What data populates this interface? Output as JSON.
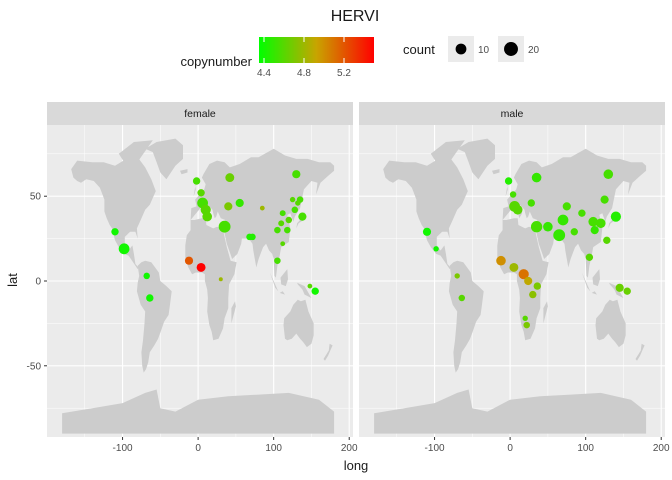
{
  "chart_data": {
    "type": "scatter",
    "title": "HERVI",
    "xlabel": "long",
    "ylabel": "lat",
    "xlim": [
      -200,
      205
    ],
    "ylim": [
      -92,
      92
    ],
    "x_ticks": [
      -100,
      0,
      100,
      200
    ],
    "y_ticks": [
      -50,
      0,
      50
    ],
    "x_tick_labels": [
      "-100",
      "0",
      "100",
      "200"
    ],
    "y_tick_labels": [
      "-50",
      "0",
      "50"
    ],
    "background": "world map (land masses in grey)",
    "facets": [
      "female",
      "male"
    ],
    "color_legend": {
      "title": "copynumber",
      "low": 4.35,
      "high": 5.5,
      "ticks": [
        4.4,
        4.8,
        5.2
      ],
      "tick_labels": [
        "4.4",
        "4.8",
        "5.2"
      ],
      "low_color": "#00ff00",
      "mid_color": "#c8a400",
      "high_color": "#ff0000"
    },
    "size_legend": {
      "title": "count",
      "values": [
        10,
        20
      ],
      "labels": [
        "10",
        "20"
      ]
    },
    "series": [
      {
        "name": "female",
        "points": [
          {
            "long": 130,
            "lat": 63,
            "copynumber": 4.55,
            "count": 10
          },
          {
            "long": -2,
            "lat": 59,
            "copynumber": 4.55,
            "count": 8
          },
          {
            "long": 42,
            "lat": 61,
            "copynumber": 4.65,
            "count": 12
          },
          {
            "long": 4,
            "lat": 52,
            "copynumber": 4.6,
            "count": 8
          },
          {
            "long": 6,
            "lat": 46,
            "copynumber": 4.55,
            "count": 18
          },
          {
            "long": 10,
            "lat": 42,
            "copynumber": 4.6,
            "count": 16
          },
          {
            "long": 12,
            "lat": 38,
            "copynumber": 4.6,
            "count": 14
          },
          {
            "long": 40,
            "lat": 44,
            "copynumber": 4.7,
            "count": 10
          },
          {
            "long": 55,
            "lat": 46,
            "copynumber": 4.5,
            "count": 10
          },
          {
            "long": 35,
            "lat": 32,
            "copynumber": 4.55,
            "count": 22
          },
          {
            "long": 68,
            "lat": 26,
            "copynumber": 4.45,
            "count": 6
          },
          {
            "long": 72,
            "lat": 26,
            "copynumber": 4.45,
            "count": 6
          },
          {
            "long": 85,
            "lat": 43,
            "copynumber": 4.8,
            "count": 3
          },
          {
            "long": 105,
            "lat": 30,
            "copynumber": 4.55,
            "count": 6
          },
          {
            "long": 112,
            "lat": 22,
            "copynumber": 4.6,
            "count": 3
          },
          {
            "long": 110,
            "lat": 34,
            "copynumber": 4.6,
            "count": 5
          },
          {
            "long": 112,
            "lat": 40,
            "copynumber": 4.55,
            "count": 5
          },
          {
            "long": 118,
            "lat": 30,
            "copynumber": 4.55,
            "count": 6
          },
          {
            "long": 120,
            "lat": 36,
            "copynumber": 4.6,
            "count": 6
          },
          {
            "long": 125,
            "lat": 48,
            "copynumber": 4.6,
            "count": 4
          },
          {
            "long": 128,
            "lat": 42,
            "copynumber": 4.55,
            "count": 6
          },
          {
            "long": 132,
            "lat": 46,
            "copynumber": 4.6,
            "count": 4
          },
          {
            "long": 135,
            "lat": 48,
            "copynumber": 4.55,
            "count": 6
          },
          {
            "long": 138,
            "lat": 38,
            "copynumber": 4.55,
            "count": 10
          },
          {
            "long": 105,
            "lat": 12,
            "copynumber": 4.55,
            "count": 6
          },
          {
            "long": -110,
            "lat": 29,
            "copynumber": 4.4,
            "count": 8
          },
          {
            "long": -98,
            "lat": 19,
            "copynumber": 4.4,
            "count": 18
          },
          {
            "long": -68,
            "lat": 3,
            "copynumber": 4.4,
            "count": 6
          },
          {
            "long": -64,
            "lat": -10,
            "copynumber": 4.4,
            "count": 8
          },
          {
            "long": -12,
            "lat": 12,
            "copynumber": 5.2,
            "count": 10
          },
          {
            "long": 4,
            "lat": 8,
            "copynumber": 5.5,
            "count": 12
          },
          {
            "long": 30,
            "lat": 1,
            "copynumber": 4.8,
            "count": 2
          },
          {
            "long": 148,
            "lat": -3,
            "copynumber": 4.6,
            "count": 3
          },
          {
            "long": 155,
            "lat": -6,
            "copynumber": 4.4,
            "count": 8
          }
        ]
      },
      {
        "name": "male",
        "points": [
          {
            "long": 130,
            "lat": 63,
            "copynumber": 4.55,
            "count": 14
          },
          {
            "long": 35,
            "lat": 61,
            "copynumber": 4.5,
            "count": 14
          },
          {
            "long": -2,
            "lat": 59,
            "copynumber": 4.45,
            "count": 8
          },
          {
            "long": 6,
            "lat": 44,
            "copynumber": 4.6,
            "count": 18
          },
          {
            "long": 10,
            "lat": 42,
            "copynumber": 4.6,
            "count": 14
          },
          {
            "long": 4,
            "lat": 51,
            "copynumber": 4.55,
            "count": 6
          },
          {
            "long": 28,
            "lat": 46,
            "copynumber": 4.55,
            "count": 8
          },
          {
            "long": 35,
            "lat": 32,
            "copynumber": 4.55,
            "count": 20
          },
          {
            "long": 50,
            "lat": 32,
            "copynumber": 4.5,
            "count": 14
          },
          {
            "long": 65,
            "lat": 27,
            "copynumber": 4.5,
            "count": 22
          },
          {
            "long": 70,
            "lat": 36,
            "copynumber": 4.5,
            "count": 18
          },
          {
            "long": 75,
            "lat": 44,
            "copynumber": 4.55,
            "count": 10
          },
          {
            "long": 85,
            "lat": 29,
            "copynumber": 4.55,
            "count": 8
          },
          {
            "long": 95,
            "lat": 40,
            "copynumber": 4.55,
            "count": 8
          },
          {
            "long": 110,
            "lat": 35,
            "copynumber": 4.55,
            "count": 14
          },
          {
            "long": 112,
            "lat": 30,
            "copynumber": 4.5,
            "count": 10
          },
          {
            "long": 120,
            "lat": 34,
            "copynumber": 4.55,
            "count": 14
          },
          {
            "long": 125,
            "lat": 48,
            "copynumber": 4.55,
            "count": 10
          },
          {
            "long": 140,
            "lat": 38,
            "copynumber": 4.45,
            "count": 16
          },
          {
            "long": 128,
            "lat": 24,
            "copynumber": 4.6,
            "count": 8
          },
          {
            "long": 105,
            "lat": 14,
            "copynumber": 4.6,
            "count": 8
          },
          {
            "long": -110,
            "lat": 29,
            "copynumber": 4.4,
            "count": 10
          },
          {
            "long": -98,
            "lat": 19,
            "copynumber": 4.4,
            "count": 4
          },
          {
            "long": -70,
            "lat": 3,
            "copynumber": 4.7,
            "count": 4
          },
          {
            "long": -64,
            "lat": -10,
            "copynumber": 4.6,
            "count": 6
          },
          {
            "long": -12,
            "lat": 12,
            "copynumber": 5.0,
            "count": 14
          },
          {
            "long": 5,
            "lat": 8,
            "copynumber": 4.8,
            "count": 12
          },
          {
            "long": 18,
            "lat": 4,
            "copynumber": 5.1,
            "count": 16
          },
          {
            "long": 24,
            "lat": 0,
            "copynumber": 4.9,
            "count": 10
          },
          {
            "long": 36,
            "lat": -3,
            "copynumber": 4.7,
            "count": 8
          },
          {
            "long": 30,
            "lat": -8,
            "copynumber": 4.75,
            "count": 8
          },
          {
            "long": 20,
            "lat": -22,
            "copynumber": 4.6,
            "count": 4
          },
          {
            "long": 22,
            "lat": -26,
            "copynumber": 4.7,
            "count": 6
          },
          {
            "long": 145,
            "lat": -4,
            "copynumber": 4.65,
            "count": 10
          },
          {
            "long": 155,
            "lat": -6,
            "copynumber": 4.65,
            "count": 8
          }
        ]
      }
    ]
  }
}
